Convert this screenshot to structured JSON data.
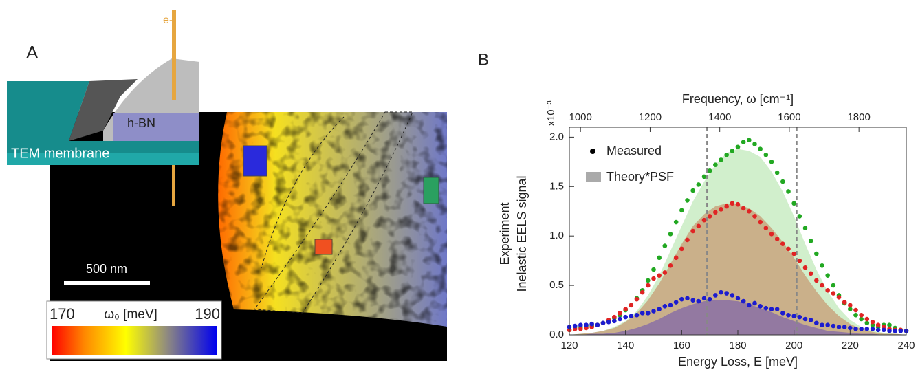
{
  "panel_a": {
    "label": "A",
    "electron_label": "e-",
    "material_label": "h-BN",
    "substrate_label": "TEM membrane",
    "scale_bar_label": "500 nm",
    "colorbar": {
      "min_label": "170",
      "title": "ω₀ [meV]",
      "max_label": "190"
    }
  },
  "chart_data": {
    "type": "scatter",
    "panel_label": "B",
    "xlabel": "Energy Loss, E [meV]",
    "x2label": "Frequency, ω [cm⁻¹]",
    "ylabel": [
      "Experiment",
      "Inelastic EELS signal"
    ],
    "y_multiplier": "x10⁻³",
    "xlim": [
      120,
      240
    ],
    "xticks": [
      120,
      140,
      160,
      180,
      200,
      220,
      240
    ],
    "x2lim": [
      968,
      1936
    ],
    "x2ticks": [
      1000,
      1200,
      1400,
      1600,
      1800
    ],
    "ylim": [
      0,
      2.1
    ],
    "yticks": [
      {
        "value": 0,
        "label": "0.0"
      },
      {
        "value": 0.5,
        "label": "0.5"
      },
      {
        "value": 1,
        "label": "1.0"
      },
      {
        "value": 1.5,
        "label": "1.5"
      },
      {
        "value": 2,
        "label": "2.0"
      }
    ],
    "vlines": [
      169,
      201
    ],
    "legend": [
      "Measured",
      "Theory*PSF"
    ],
    "x": [
      120,
      122,
      124,
      126,
      128,
      130,
      132,
      134,
      136,
      138,
      140,
      142,
      144,
      146,
      148,
      150,
      152,
      154,
      156,
      158,
      160,
      162,
      164,
      166,
      168,
      170,
      172,
      174,
      176,
      178,
      180,
      182,
      184,
      186,
      188,
      190,
      192,
      194,
      196,
      198,
      200,
      202,
      204,
      206,
      208,
      210,
      212,
      214,
      216,
      218,
      220,
      222,
      224,
      226,
      228,
      230,
      232,
      234,
      236,
      238,
      240
    ],
    "theory_x": [
      120,
      124,
      128,
      132,
      136,
      140,
      144,
      148,
      152,
      156,
      160,
      164,
      168,
      172,
      176,
      180,
      184,
      188,
      192,
      196,
      200,
      204,
      208,
      212,
      216,
      220,
      224,
      228,
      232,
      236,
      240
    ],
    "series": [
      {
        "color": "#22a822",
        "fill": "#c9ecc3",
        "values": [
          0.05,
          0.08,
          0.08,
          0.09,
          0.09,
          0.1,
          0.12,
          0.14,
          0.17,
          0.2,
          0.25,
          0.3,
          0.37,
          0.45,
          0.55,
          0.66,
          0.78,
          0.9,
          1.02,
          1.14,
          1.26,
          1.36,
          1.46,
          1.52,
          1.6,
          1.66,
          1.72,
          1.77,
          1.82,
          1.86,
          1.9,
          1.95,
          1.97,
          1.93,
          1.88,
          1.82,
          1.75,
          1.64,
          1.55,
          1.45,
          1.33,
          1.2,
          1.08,
          0.95,
          0.82,
          0.7,
          0.6,
          0.5,
          0.4,
          0.32,
          0.26,
          0.2,
          0.16,
          0.12,
          0.1,
          0.08,
          0.1,
          0.1,
          0.07,
          0.05,
          0.04
        ],
        "theory": [
          0,
          0.01,
          0.02,
          0.04,
          0.08,
          0.14,
          0.24,
          0.4,
          0.6,
          0.85,
          1.1,
          1.35,
          1.55,
          1.72,
          1.84,
          1.88,
          1.86,
          1.8,
          1.65,
          1.45,
          1.2,
          0.92,
          0.66,
          0.44,
          0.27,
          0.15,
          0.08,
          0.04,
          0.02,
          0.01,
          0
        ]
      },
      {
        "color": "#e02424",
        "fill": "#c9a47e",
        "values": [
          0.05,
          0.06,
          0.06,
          0.07,
          0.08,
          0.1,
          0.12,
          0.15,
          0.18,
          0.22,
          0.26,
          0.3,
          0.36,
          0.43,
          0.5,
          0.57,
          0.6,
          0.63,
          0.7,
          0.78,
          0.87,
          0.96,
          1.05,
          1.1,
          1.16,
          1.2,
          1.24,
          1.27,
          1.3,
          1.33,
          1.32,
          1.28,
          1.25,
          1.2,
          1.14,
          1.08,
          1.02,
          0.97,
          0.92,
          0.87,
          0.82,
          0.75,
          0.68,
          0.62,
          0.55,
          0.5,
          0.45,
          0.42,
          0.38,
          0.33,
          0.3,
          0.25,
          0.2,
          0.16,
          0.13,
          0.1,
          0.08,
          0.06,
          0.05,
          0.05,
          0.04
        ],
        "theory": [
          0,
          0.01,
          0.02,
          0.04,
          0.07,
          0.13,
          0.22,
          0.35,
          0.52,
          0.72,
          0.92,
          1.1,
          1.22,
          1.3,
          1.33,
          1.32,
          1.28,
          1.2,
          1.08,
          0.94,
          0.78,
          0.6,
          0.44,
          0.3,
          0.19,
          0.11,
          0.06,
          0.03,
          0.01,
          0.01,
          0
        ]
      },
      {
        "color": "#1c1ccf",
        "fill": "#8a70a4",
        "values": [
          0.08,
          0.09,
          0.1,
          0.1,
          0.11,
          0.1,
          0.12,
          0.13,
          0.14,
          0.16,
          0.18,
          0.19,
          0.2,
          0.22,
          0.22,
          0.24,
          0.26,
          0.29,
          0.3,
          0.33,
          0.36,
          0.37,
          0.35,
          0.34,
          0.37,
          0.36,
          0.4,
          0.43,
          0.42,
          0.4,
          0.37,
          0.34,
          0.3,
          0.32,
          0.29,
          0.27,
          0.26,
          0.26,
          0.22,
          0.2,
          0.19,
          0.18,
          0.16,
          0.15,
          0.12,
          0.1,
          0.1,
          0.09,
          0.08,
          0.08,
          0.07,
          0.06,
          0.06,
          0.06,
          0.06,
          0.05,
          0.05,
          0.04,
          0.04,
          0.04,
          0.04
        ],
        "theory": [
          0,
          0,
          0.01,
          0.01,
          0.02,
          0.04,
          0.07,
          0.11,
          0.16,
          0.22,
          0.27,
          0.31,
          0.34,
          0.35,
          0.35,
          0.34,
          0.31,
          0.27,
          0.23,
          0.18,
          0.14,
          0.1,
          0.07,
          0.04,
          0.03,
          0.02,
          0.01,
          0.01,
          0,
          0,
          0
        ]
      }
    ]
  }
}
